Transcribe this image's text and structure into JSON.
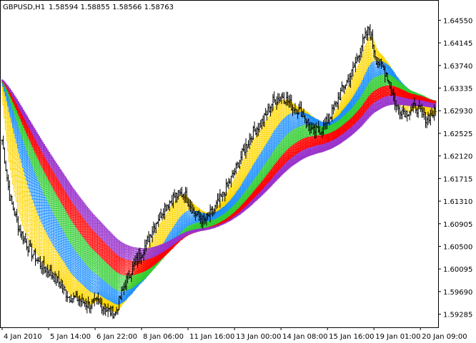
{
  "header": {
    "symbol": "GBPUSD,H1",
    "ohlc": "1.58594 1.58855 1.58566 1.58763"
  },
  "chart_data": {
    "type": "candlestick-bars",
    "symbol": "GBPUSD",
    "timeframe": "H1",
    "ohlc_last": {
      "open": 1.58594,
      "high": 1.58855,
      "low": 1.58566,
      "close": 1.58763
    },
    "y_ticks": [
      "1.64550",
      "1.64145",
      "1.63740",
      "1.63335",
      "1.62930",
      "1.62525",
      "1.62120",
      "1.61715",
      "1.61310",
      "1.60905",
      "1.60500",
      "1.60095",
      "1.59690",
      "1.59285"
    ],
    "ylim": [
      1.5905,
      1.649
    ],
    "x_ticks": [
      "4 Jan 2010",
      "5 Jan 14:00",
      "6 Jan 22:00",
      "8 Jan 06:00",
      "11 Jan 16:00",
      "13 Jan 00:00",
      "14 Jan 08:00",
      "15 Jan 16:00",
      "19 Jan 01:00",
      "20 Jan 09:00"
    ],
    "price_path": [
      [
        0,
        1.624
      ],
      [
        6,
        1.614
      ],
      [
        14,
        1.608
      ],
      [
        22,
        1.6045
      ],
      [
        30,
        1.602
      ],
      [
        38,
        1.6005
      ],
      [
        46,
        1.5985
      ],
      [
        54,
        1.596
      ],
      [
        62,
        1.5955
      ],
      [
        70,
        1.5945
      ],
      [
        78,
        1.595
      ],
      [
        86,
        1.5935
      ],
      [
        92,
        1.593
      ],
      [
        100,
        1.5985
      ],
      [
        108,
        1.602
      ],
      [
        116,
        1.605
      ],
      [
        124,
        1.609
      ],
      [
        132,
        1.612
      ],
      [
        140,
        1.614
      ],
      [
        148,
        1.6145
      ],
      [
        156,
        1.611
      ],
      [
        164,
        1.6095
      ],
      [
        172,
        1.6115
      ],
      [
        180,
        1.6145
      ],
      [
        188,
        1.618
      ],
      [
        196,
        1.622
      ],
      [
        204,
        1.6255
      ],
      [
        212,
        1.6275
      ],
      [
        220,
        1.631
      ],
      [
        228,
        1.632
      ],
      [
        236,
        1.63
      ],
      [
        244,
        1.629
      ],
      [
        252,
        1.6255
      ],
      [
        260,
        1.626
      ],
      [
        268,
        1.629
      ],
      [
        276,
        1.633
      ],
      [
        284,
        1.636
      ],
      [
        292,
        1.641
      ],
      [
        298,
        1.644
      ],
      [
        304,
        1.6385
      ],
      [
        312,
        1.636
      ],
      [
        320,
        1.63
      ],
      [
        328,
        1.629
      ],
      [
        336,
        1.63
      ],
      [
        344,
        1.628
      ],
      [
        352,
        1.629
      ]
    ],
    "ribbon_series": [
      {
        "color": "#FFD700",
        "count": 12
      },
      {
        "color": "#1E90FF",
        "count": 12
      },
      {
        "color": "#32CD32",
        "count": 12
      },
      {
        "color": "#FF0000",
        "count": 12
      },
      {
        "color": "#9932CC",
        "count": 12
      }
    ],
    "grid": false,
    "legend": "none"
  }
}
